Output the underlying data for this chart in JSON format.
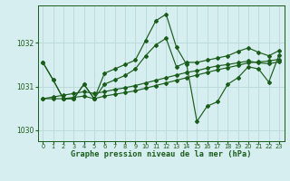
{
  "background_color": "#d7eef0",
  "grid_color": "#b8d8da",
  "line_color": "#1a5c1a",
  "xlabel": "Graphe pression niveau de la mer (hPa)",
  "xlim": [
    -0.5,
    23.5
  ],
  "ylim": [
    1029.75,
    1032.85
  ],
  "yticks": [
    1030,
    1031,
    1032
  ],
  "xticks": [
    0,
    1,
    2,
    3,
    4,
    5,
    6,
    7,
    8,
    9,
    10,
    11,
    12,
    13,
    14,
    15,
    16,
    17,
    18,
    19,
    20,
    21,
    22,
    23
  ],
  "series": [
    [
      1031.55,
      1031.15,
      1030.72,
      1030.72,
      1031.05,
      1030.72,
      1031.3,
      1031.4,
      1031.5,
      1031.6,
      1032.05,
      1032.5,
      1032.65,
      1031.9,
      1031.5,
      1030.2,
      1030.55,
      1030.65,
      1031.05,
      1031.2,
      1031.45,
      1031.4,
      1031.1,
      1031.72
    ],
    [
      1031.55,
      1031.15,
      1030.72,
      1030.72,
      1031.05,
      1030.72,
      1031.05,
      1031.15,
      1031.25,
      1031.4,
      1031.7,
      1031.95,
      1032.1,
      1031.45,
      1031.55,
      1031.55,
      1031.6,
      1031.65,
      1031.7,
      1031.8,
      1031.88,
      1031.78,
      1031.7,
      1031.82
    ],
    [
      1030.72,
      1030.72,
      1030.72,
      1030.75,
      1030.78,
      1030.72,
      1030.78,
      1030.82,
      1030.86,
      1030.9,
      1030.96,
      1031.02,
      1031.08,
      1031.14,
      1031.2,
      1031.26,
      1031.32,
      1031.38,
      1031.43,
      1031.48,
      1031.54,
      1031.56,
      1031.58,
      1031.62
    ],
    [
      1030.72,
      1030.76,
      1030.8,
      1030.84,
      1030.88,
      1030.84,
      1030.88,
      1030.93,
      1030.97,
      1031.02,
      1031.08,
      1031.14,
      1031.2,
      1031.26,
      1031.32,
      1031.36,
      1031.42,
      1031.47,
      1031.5,
      1031.54,
      1031.58,
      1031.54,
      1031.52,
      1031.56
    ]
  ]
}
